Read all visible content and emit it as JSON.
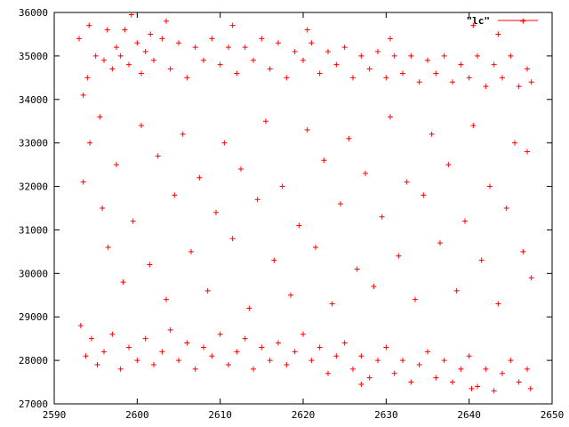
{
  "chart_data": {
    "type": "scatter",
    "title": "",
    "xlabel": "",
    "ylabel": "",
    "xlim": [
      2590,
      2650
    ],
    "ylim": [
      27000,
      36000
    ],
    "x_ticks": [
      2590,
      2600,
      2610,
      2620,
      2630,
      2640,
      2650
    ],
    "y_ticks": [
      27000,
      28000,
      29000,
      30000,
      31000,
      32000,
      33000,
      34000,
      35000,
      36000
    ],
    "x_tick_labels": [
      "2590",
      "2600",
      "2610",
      "2620",
      "2630",
      "2640",
      "2650"
    ],
    "y_tick_labels": [
      "27000",
      "28000",
      "29000",
      "30000",
      "31000",
      "32000",
      "33000",
      "34000",
      "35000",
      "36000"
    ],
    "grid": false,
    "legend_position": "top-right",
    "series": [
      {
        "name": "\"lc\"",
        "color": "#ff0000",
        "marker": "plus",
        "points": [
          [
            2593.0,
            35400
          ],
          [
            2593.5,
            34100
          ],
          [
            2594.0,
            34500
          ],
          [
            2594.2,
            35700
          ],
          [
            2595.0,
            35000
          ],
          [
            2595.5,
            33600
          ],
          [
            2596.0,
            34900
          ],
          [
            2596.4,
            35600
          ],
          [
            2597.0,
            34700
          ],
          [
            2597.5,
            35200
          ],
          [
            2598.0,
            35000
          ],
          [
            2598.5,
            35600
          ],
          [
            2599.0,
            34800
          ],
          [
            2599.3,
            35950
          ],
          [
            2600.0,
            35300
          ],
          [
            2600.5,
            34600
          ],
          [
            2601.0,
            35100
          ],
          [
            2601.6,
            35500
          ],
          [
            2602.0,
            34900
          ],
          [
            2603.0,
            35400
          ],
          [
            2604.0,
            34700
          ],
          [
            2605.0,
            35300
          ],
          [
            2606.0,
            34500
          ],
          [
            2607.0,
            35200
          ],
          [
            2608.0,
            34900
          ],
          [
            2609.0,
            35400
          ],
          [
            2610.0,
            34800
          ],
          [
            2611.0,
            35200
          ],
          [
            2612.0,
            34600
          ],
          [
            2613.0,
            35200
          ],
          [
            2614.0,
            34900
          ],
          [
            2615.0,
            35400
          ],
          [
            2616.0,
            34700
          ],
          [
            2617.0,
            35300
          ],
          [
            2618.0,
            34500
          ],
          [
            2619.0,
            35100
          ],
          [
            2620.0,
            34900
          ],
          [
            2621.0,
            35300
          ],
          [
            2622.0,
            34600
          ],
          [
            2623.0,
            35100
          ],
          [
            2624.0,
            34800
          ],
          [
            2625.0,
            35200
          ],
          [
            2626.0,
            34500
          ],
          [
            2627.0,
            35000
          ],
          [
            2628.0,
            34700
          ],
          [
            2629.0,
            35100
          ],
          [
            2630.0,
            34500
          ],
          [
            2631.0,
            35000
          ],
          [
            2632.0,
            34600
          ],
          [
            2633.0,
            35000
          ],
          [
            2634.0,
            34400
          ],
          [
            2635.0,
            34900
          ],
          [
            2636.0,
            34600
          ],
          [
            2637.0,
            35000
          ],
          [
            2638.0,
            34400
          ],
          [
            2639.0,
            34800
          ],
          [
            2640.0,
            34500
          ],
          [
            2641.0,
            35000
          ],
          [
            2642.0,
            34300
          ],
          [
            2643.0,
            34800
          ],
          [
            2644.0,
            34500
          ],
          [
            2645.0,
            35000
          ],
          [
            2646.0,
            34300
          ],
          [
            2647.0,
            34700
          ],
          [
            2647.5,
            34400
          ],
          [
            2643.5,
            35500
          ],
          [
            2603.5,
            35800
          ],
          [
            2611.5,
            35700
          ],
          [
            2620.5,
            35600
          ],
          [
            2630.5,
            35400
          ],
          [
            2640.5,
            35700
          ],
          [
            2646.5,
            35800
          ],
          [
            2593.2,
            28800
          ],
          [
            2593.8,
            28100
          ],
          [
            2594.5,
            28500
          ],
          [
            2595.2,
            27900
          ],
          [
            2596.0,
            28200
          ],
          [
            2597.0,
            28600
          ],
          [
            2598.0,
            27800
          ],
          [
            2599.0,
            28300
          ],
          [
            2600.0,
            28000
          ],
          [
            2601.0,
            28500
          ],
          [
            2602.0,
            27900
          ],
          [
            2603.0,
            28200
          ],
          [
            2604.0,
            28700
          ],
          [
            2605.0,
            28000
          ],
          [
            2606.0,
            28400
          ],
          [
            2607.0,
            27800
          ],
          [
            2608.0,
            28300
          ],
          [
            2609.0,
            28100
          ],
          [
            2610.0,
            28600
          ],
          [
            2611.0,
            27900
          ],
          [
            2612.0,
            28200
          ],
          [
            2613.0,
            28500
          ],
          [
            2614.0,
            27800
          ],
          [
            2615.0,
            28300
          ],
          [
            2616.0,
            28000
          ],
          [
            2617.0,
            28400
          ],
          [
            2618.0,
            27900
          ],
          [
            2619.0,
            28200
          ],
          [
            2620.0,
            28600
          ],
          [
            2621.0,
            28000
          ],
          [
            2622.0,
            28300
          ],
          [
            2623.0,
            27700
          ],
          [
            2624.0,
            28100
          ],
          [
            2625.0,
            28400
          ],
          [
            2626.0,
            27800
          ],
          [
            2627.0,
            28100
          ],
          [
            2628.0,
            27600
          ],
          [
            2629.0,
            28000
          ],
          [
            2630.0,
            28300
          ],
          [
            2631.0,
            27700
          ],
          [
            2632.0,
            28000
          ],
          [
            2633.0,
            27500
          ],
          [
            2634.0,
            27900
          ],
          [
            2635.0,
            28200
          ],
          [
            2636.0,
            27600
          ],
          [
            2637.0,
            28000
          ],
          [
            2638.0,
            27500
          ],
          [
            2639.0,
            27800
          ],
          [
            2640.0,
            28100
          ],
          [
            2641.0,
            27400
          ],
          [
            2642.0,
            27800
          ],
          [
            2643.0,
            27300
          ],
          [
            2644.0,
            27700
          ],
          [
            2645.0,
            28000
          ],
          [
            2646.0,
            27500
          ],
          [
            2647.0,
            27800
          ],
          [
            2647.4,
            27350
          ],
          [
            2640.3,
            27350
          ],
          [
            2627.0,
            27450
          ],
          [
            2593.5,
            32100
          ],
          [
            2594.3,
            33000
          ],
          [
            2595.8,
            31500
          ],
          [
            2596.5,
            30600
          ],
          [
            2597.5,
            32500
          ],
          [
            2598.3,
            29800
          ],
          [
            2599.5,
            31200
          ],
          [
            2600.5,
            33400
          ],
          [
            2601.5,
            30200
          ],
          [
            2602.5,
            32700
          ],
          [
            2603.5,
            29400
          ],
          [
            2604.5,
            31800
          ],
          [
            2605.5,
            33200
          ],
          [
            2606.5,
            30500
          ],
          [
            2607.5,
            32200
          ],
          [
            2608.5,
            29600
          ],
          [
            2609.5,
            31400
          ],
          [
            2610.5,
            33000
          ],
          [
            2611.5,
            30800
          ],
          [
            2612.5,
            32400
          ],
          [
            2613.5,
            29200
          ],
          [
            2614.5,
            31700
          ],
          [
            2615.5,
            33500
          ],
          [
            2616.5,
            30300
          ],
          [
            2617.5,
            32000
          ],
          [
            2618.5,
            29500
          ],
          [
            2619.5,
            31100
          ],
          [
            2620.5,
            33300
          ],
          [
            2621.5,
            30600
          ],
          [
            2622.5,
            32600
          ],
          [
            2623.5,
            29300
          ],
          [
            2624.5,
            31600
          ],
          [
            2625.5,
            33100
          ],
          [
            2626.5,
            30100
          ],
          [
            2627.5,
            32300
          ],
          [
            2628.5,
            29700
          ],
          [
            2629.5,
            31300
          ],
          [
            2630.5,
            33600
          ],
          [
            2631.5,
            30400
          ],
          [
            2632.5,
            32100
          ],
          [
            2633.5,
            29400
          ],
          [
            2634.5,
            31800
          ],
          [
            2635.5,
            33200
          ],
          [
            2636.5,
            30700
          ],
          [
            2637.5,
            32500
          ],
          [
            2638.5,
            29600
          ],
          [
            2639.5,
            31200
          ],
          [
            2640.5,
            33400
          ],
          [
            2641.5,
            30300
          ],
          [
            2642.5,
            32000
          ],
          [
            2643.5,
            29300
          ],
          [
            2644.5,
            31500
          ],
          [
            2645.5,
            33000
          ],
          [
            2646.5,
            30500
          ],
          [
            2647.0,
            32800
          ],
          [
            2647.5,
            29900
          ]
        ]
      }
    ]
  }
}
